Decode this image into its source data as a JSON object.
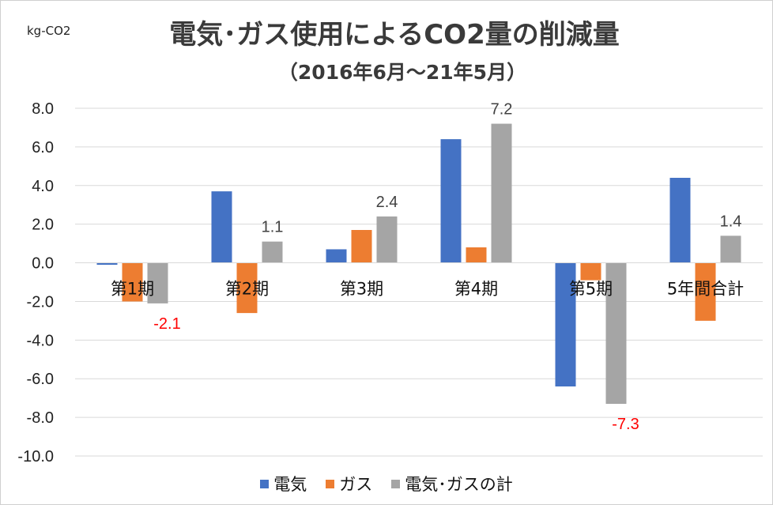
{
  "chart_data": {
    "type": "bar",
    "title": "電気･ガス使用によるCO2量の削減量",
    "subtitle": "（2016年6月～21年5月）",
    "ylabel": "kg-CO2",
    "ylim": [
      -10,
      8
    ],
    "yticks": [
      "8.0",
      "6.0",
      "4.0",
      "2.0",
      "0.0",
      "-2.0",
      "-4.0",
      "-6.0",
      "-8.0",
      "-10.0"
    ],
    "ytick_values": [
      8,
      6,
      4,
      2,
      0,
      -2,
      -4,
      -6,
      -8,
      -10
    ],
    "grid": true,
    "legend_position": "bottom",
    "categories": [
      "第1期",
      "第2期",
      "第3期",
      "第4期",
      "第5期",
      "5年間合計"
    ],
    "series": [
      {
        "name": "電気",
        "color": "#4472C4",
        "values": [
          -0.1,
          3.7,
          0.7,
          6.4,
          -6.4,
          4.4
        ]
      },
      {
        "name": "ガス",
        "color": "#ED7D31",
        "values": [
          -2.0,
          -2.6,
          1.7,
          0.8,
          -0.9,
          -3.0
        ]
      },
      {
        "name": "電気･ガスの計",
        "color": "#A5A5A5",
        "values": [
          -2.1,
          1.1,
          2.4,
          7.2,
          -7.3,
          1.4
        ]
      }
    ],
    "data_labels": [
      {
        "category_index": 0,
        "series_index": 2,
        "text": "-2.1",
        "color": "#FF0000"
      },
      {
        "category_index": 1,
        "series_index": 2,
        "text": "1.1",
        "color": "#404040"
      },
      {
        "category_index": 2,
        "series_index": 2,
        "text": "2.4",
        "color": "#404040"
      },
      {
        "category_index": 3,
        "series_index": 2,
        "text": "7.2",
        "color": "#404040"
      },
      {
        "category_index": 4,
        "series_index": 2,
        "text": "-7.3",
        "color": "#FF0000"
      },
      {
        "category_index": 5,
        "series_index": 2,
        "text": "1.4",
        "color": "#404040"
      }
    ]
  }
}
